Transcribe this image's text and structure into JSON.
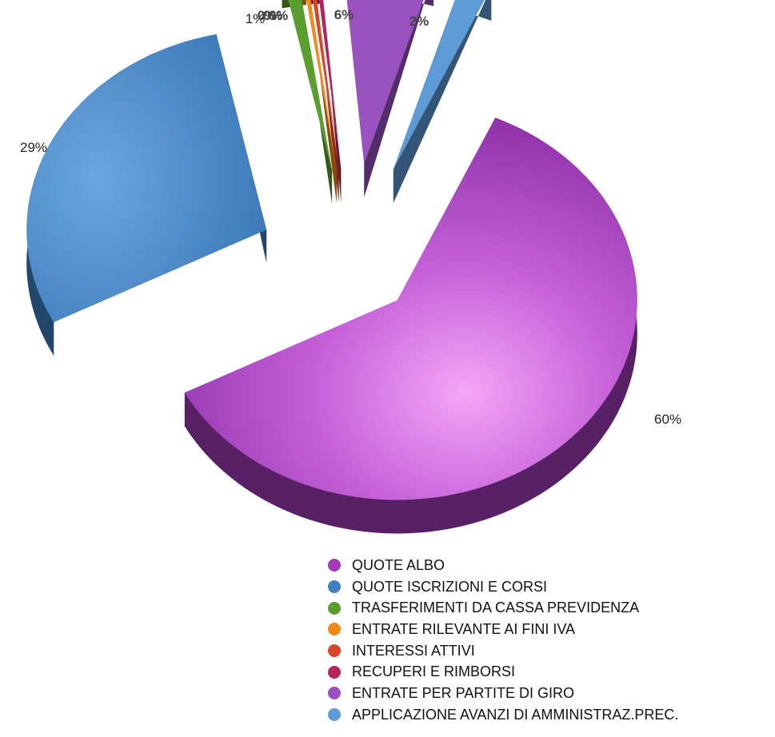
{
  "chart_data": {
    "type": "pie",
    "title": "",
    "categories": [
      "QUOTE ALBO",
      "QUOTE ISCRIZIONI E CORSI",
      "TRASFERIMENTI DA CASSA PREVIDENZA",
      "ENTRATE RILEVANTE AI FINI IVA",
      "INTERESSI ATTIVI",
      "RECUPERI E RIMBORSI",
      "ENTRATE PER PARTITE DI GIRO",
      "APPLICAZIONE AVANZI DI AMMINISTRAZ.PREC."
    ],
    "values": [
      60,
      29,
      1,
      0,
      0,
      0,
      6,
      2
    ],
    "value_labels": [
      "60%",
      "29%",
      "1%",
      "0%",
      "0%",
      "0%",
      "6%",
      "2%"
    ],
    "colors": [
      "#a03cb8",
      "#3f7fc2",
      "#5a9e2e",
      "#f08a1a",
      "#d9452a",
      "#b2245c",
      "#9a52c0",
      "#5e9ad6"
    ],
    "legend_position": "bottom-right",
    "style": "3d-exploded"
  }
}
